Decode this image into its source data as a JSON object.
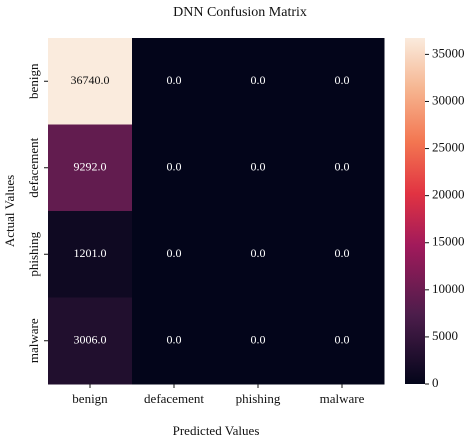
{
  "chart_data": {
    "type": "heatmap",
    "title": "DNN Confusion Matrix",
    "x_label": "Predicted Values",
    "y_label": "Actual Values",
    "x_categories": [
      "benign",
      "defacement",
      "phishing",
      "malware"
    ],
    "y_categories": [
      "benign",
      "defacement",
      "phishing",
      "malware"
    ],
    "values": [
      [
        36740,
        0,
        0,
        0
      ],
      [
        9292,
        0,
        0,
        0
      ],
      [
        1201,
        0,
        0,
        0
      ],
      [
        3006,
        0,
        0,
        0
      ]
    ],
    "value_labels": [
      [
        "36740.0",
        "0.0",
        "0.0",
        "0.0"
      ],
      [
        "9292.0",
        "0.0",
        "0.0",
        "0.0"
      ],
      [
        "1201.0",
        "0.0",
        "0.0",
        "0.0"
      ],
      [
        "3006.0",
        "0.0",
        "0.0",
        "0.0"
      ]
    ],
    "colormap": "rocket",
    "colorbar_lim": [
      0,
      36740
    ],
    "colorbar_ticks": [
      0,
      5000,
      10000,
      15000,
      20000,
      25000,
      30000,
      35000
    ]
  }
}
